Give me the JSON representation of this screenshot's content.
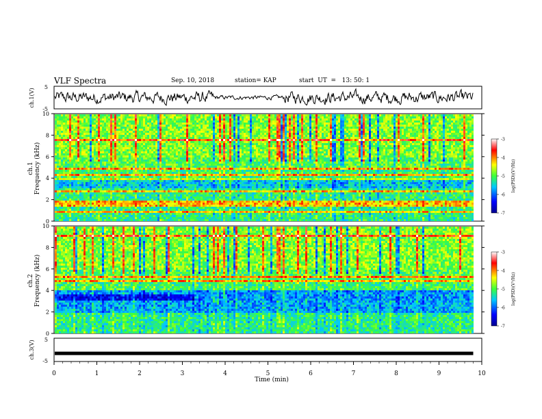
{
  "header": {
    "title": "VLF Spectra",
    "date": "Sep. 10, 2018",
    "station": "station= KAP",
    "start": "start  UT  =   13: 50: 1"
  },
  "chart_data": [
    {
      "type": "line",
      "title": "",
      "ylabel": "ch.1(V)",
      "ylim": [
        -5,
        5
      ],
      "yticks": [
        "5",
        "-5"
      ],
      "xlim": [
        0,
        10
      ],
      "note": "noisy waveform between roughly -3 and 3 V"
    },
    {
      "type": "heatmap",
      "ylabel_line1": "ch.1",
      "ylabel_line2": "Frequency  (kHz)",
      "ylim": [
        0,
        10
      ],
      "yticks": [
        "0",
        "2",
        "4",
        "6",
        "8",
        "10"
      ],
      "xlim": [
        0,
        9.8
      ],
      "colorbar": {
        "label": "log(PSD)(V²/Hz)",
        "ticks": [
          "-3",
          "-4",
          "-5",
          "-6",
          "-7"
        ],
        "range": [
          -7,
          -3
        ]
      }
    },
    {
      "type": "heatmap",
      "ylabel_line1": "ch.2",
      "ylabel_line2": "Frequency  (kHz)",
      "ylim": [
        0,
        10
      ],
      "yticks": [
        "0",
        "2",
        "4",
        "6",
        "8",
        "10"
      ],
      "xlim": [
        0,
        9.8
      ],
      "colorbar": {
        "label": "log(PSD)(V²/Hz)",
        "ticks": [
          "-3",
          "-4",
          "-5",
          "-6",
          "-7"
        ],
        "range": [
          -7,
          -3
        ]
      }
    },
    {
      "type": "line",
      "ylabel": "ch.3(V)",
      "ylim": [
        -5,
        5
      ],
      "yticks": [
        "5",
        "-5"
      ],
      "values_constant": -1.5,
      "xlabel": "Time  (min)",
      "xlim": [
        0,
        10
      ],
      "xticks": [
        "0",
        "1",
        "2",
        "3",
        "4",
        "5",
        "6",
        "7",
        "8",
        "9",
        "10"
      ]
    }
  ]
}
